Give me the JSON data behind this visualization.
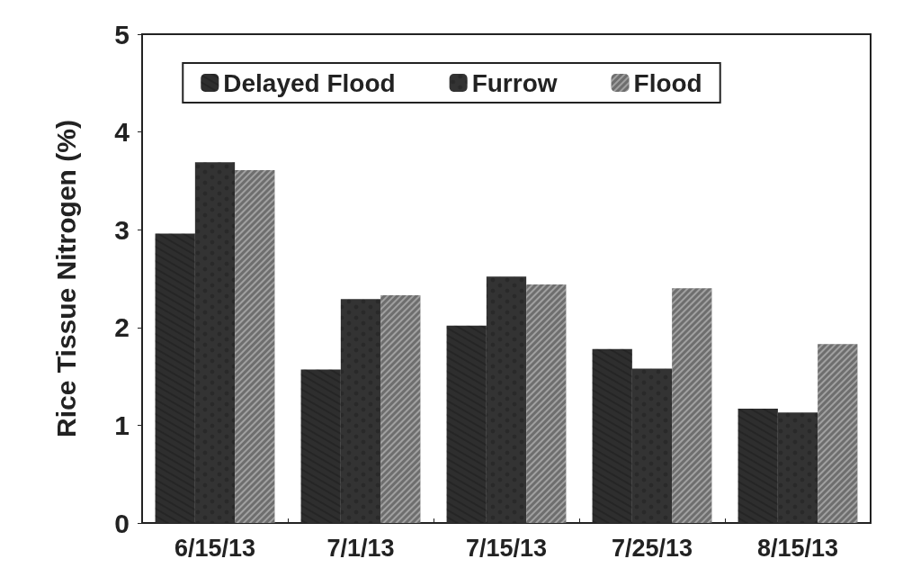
{
  "chart_data": {
    "type": "bar",
    "ylabel": "Rice Tissue Nitrogen (%)",
    "categories": [
      "6/15/13",
      "7/1/13",
      "7/15/13",
      "7/25/13",
      "8/15/13"
    ],
    "series": [
      {
        "name": "Delayed Flood",
        "color": "#2e2e2e",
        "values": [
          2.96,
          1.57,
          2.02,
          1.78,
          1.17
        ]
      },
      {
        "name": "Furrow",
        "color": "#333333",
        "values": [
          3.69,
          2.29,
          2.52,
          1.58,
          1.13
        ]
      },
      {
        "name": "Flood",
        "color": "#6e6e6e",
        "values": [
          3.61,
          2.33,
          2.44,
          2.4,
          1.83
        ]
      }
    ],
    "ylim": [
      0,
      5
    ],
    "yticks": [
      0,
      1,
      2,
      3,
      4,
      5
    ],
    "grid": false,
    "legend": "top"
  }
}
